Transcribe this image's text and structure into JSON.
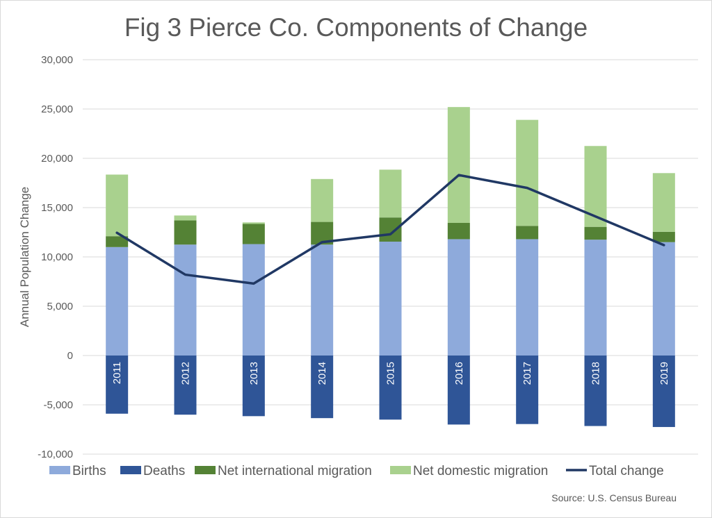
{
  "chart_data": {
    "type": "bar",
    "title": "Fig 3 Pierce Co. Components of Change",
    "ylabel": "Annual Population Change",
    "xlabel": "",
    "source": "Source: U.S. Census Bureau",
    "ylim": [
      -10000,
      30000
    ],
    "yticks": [
      30000,
      25000,
      20000,
      15000,
      10000,
      5000,
      0,
      -5000,
      -10000
    ],
    "ytick_labels": [
      "30,000",
      "25,000",
      "20,000",
      "15,000",
      "10,000",
      "5,000",
      "0",
      "-5,000",
      "-10,000"
    ],
    "grid": true,
    "legend_position": "bottom",
    "categories": [
      "2011",
      "2012",
      "2013",
      "2014",
      "2015",
      "2016",
      "2017",
      "2018",
      "2019"
    ],
    "series": [
      {
        "name": "Births",
        "kind": "stacked-bar",
        "color": "#8eaadb",
        "values": [
          11000,
          11250,
          11300,
          11250,
          11550,
          11800,
          11800,
          11750,
          11500
        ]
      },
      {
        "name": "Deaths",
        "kind": "stacked-bar",
        "color": "#2f5597",
        "values": [
          -5900,
          -6000,
          -6150,
          -6350,
          -6500,
          -7000,
          -6950,
          -7150,
          -7250
        ]
      },
      {
        "name": "Net international migration",
        "kind": "stacked-bar",
        "color": "#548235",
        "values": [
          1100,
          2450,
          2050,
          2300,
          2450,
          1650,
          1350,
          1300,
          1050
        ]
      },
      {
        "name": "Net domestic migration",
        "kind": "stacked-bar",
        "color": "#a9d18e",
        "values": [
          6250,
          500,
          150,
          4350,
          4850,
          11750,
          10750,
          8200,
          5950
        ]
      },
      {
        "name": "Total change",
        "kind": "line",
        "color": "#203864",
        "values": [
          12450,
          8200,
          7300,
          11500,
          12300,
          18300,
          17000,
          14100,
          11200
        ]
      }
    ]
  }
}
